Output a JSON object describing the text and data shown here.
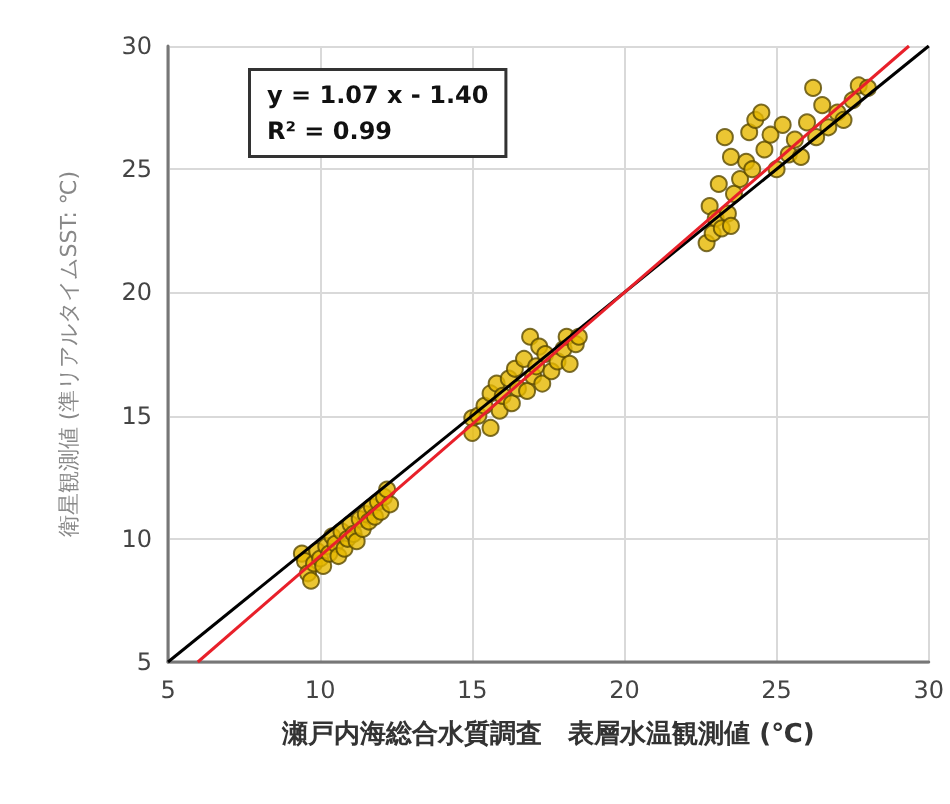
{
  "chart_data": {
    "type": "scatter",
    "xlabel": "瀬戸内海総合水質調査　表層水温観測値 (℃)",
    "ylabel": "衛星観測値 (準リアルタイムSST: ℃)",
    "annotations": [
      "y = 1.07 x - 1.40\nR² = 0.99"
    ],
    "xlim": [
      5,
      30
    ],
    "xticks": [
      5,
      10,
      15,
      20,
      25,
      30
    ],
    "ylim": [
      5,
      30
    ],
    "yticks": [
      5,
      10,
      15,
      20,
      25,
      30
    ],
    "grid": true,
    "marker": "circle",
    "series": [
      {
        "color": "#e6b800",
        "x": [
          9.4,
          9.5,
          9.6,
          9.7,
          9.8,
          9.9,
          10.0,
          10.1,
          10.2,
          10.3,
          10.4,
          10.5,
          10.6,
          10.7,
          10.8,
          10.9,
          11.0,
          11.1,
          11.2,
          11.3,
          11.4,
          11.5,
          11.6,
          11.7,
          11.8,
          11.9,
          12.0,
          12.1,
          12.2,
          12.3,
          15.0,
          15.0,
          15.2,
          15.4,
          15.6,
          15.6,
          15.8,
          15.9,
          16.0,
          16.2,
          16.3,
          16.4,
          16.5,
          16.7,
          16.8,
          16.9,
          17.0,
          17.1,
          17.2,
          17.3,
          17.4,
          17.6,
          17.8,
          18.0,
          18.1,
          18.2,
          18.4,
          18.5,
          22.7,
          22.8,
          22.9,
          23.0,
          23.1,
          23.2,
          23.3,
          23.4,
          23.5,
          23.5,
          23.6,
          23.8,
          24.0,
          24.1,
          24.2,
          24.3,
          24.5,
          24.6,
          24.8,
          25.0,
          25.2,
          25.4,
          25.6,
          25.8,
          26.0,
          26.2,
          26.3,
          26.5,
          26.7,
          27.0,
          27.2,
          27.5,
          27.7,
          28.0
        ],
        "values": [
          9.4,
          9.1,
          8.6,
          8.3,
          9.0,
          9.5,
          9.2,
          8.9,
          9.7,
          9.4,
          10.1,
          9.8,
          9.3,
          10.3,
          9.6,
          10.0,
          10.6,
          10.2,
          9.9,
          10.8,
          10.4,
          11.0,
          10.7,
          11.3,
          10.9,
          11.5,
          11.1,
          11.7,
          12.0,
          11.4,
          14.9,
          14.3,
          15.0,
          15.4,
          14.5,
          15.9,
          16.3,
          15.2,
          15.8,
          16.5,
          15.5,
          16.9,
          16.1,
          17.3,
          16.0,
          18.2,
          16.6,
          17.0,
          17.8,
          16.3,
          17.5,
          16.8,
          17.2,
          17.7,
          18.2,
          17.1,
          17.9,
          18.2,
          22.0,
          23.5,
          22.4,
          23.0,
          24.4,
          22.6,
          26.3,
          23.2,
          22.7,
          25.5,
          24.0,
          24.6,
          25.3,
          26.5,
          25.0,
          27.0,
          27.3,
          25.8,
          26.4,
          25.0,
          26.8,
          25.6,
          26.2,
          25.5,
          26.9,
          28.3,
          26.3,
          27.6,
          26.7,
          27.3,
          27.0,
          27.8,
          28.4,
          28.3
        ]
      },
      {
        "type": "line",
        "color": "#000000",
        "x": [
          5,
          30
        ],
        "values": [
          5,
          30
        ],
        "marker": "none"
      },
      {
        "type": "line",
        "color": "#e8202a",
        "x": [
          5.98,
          29.35
        ],
        "values": [
          5,
          30
        ],
        "marker": "none"
      }
    ]
  }
}
